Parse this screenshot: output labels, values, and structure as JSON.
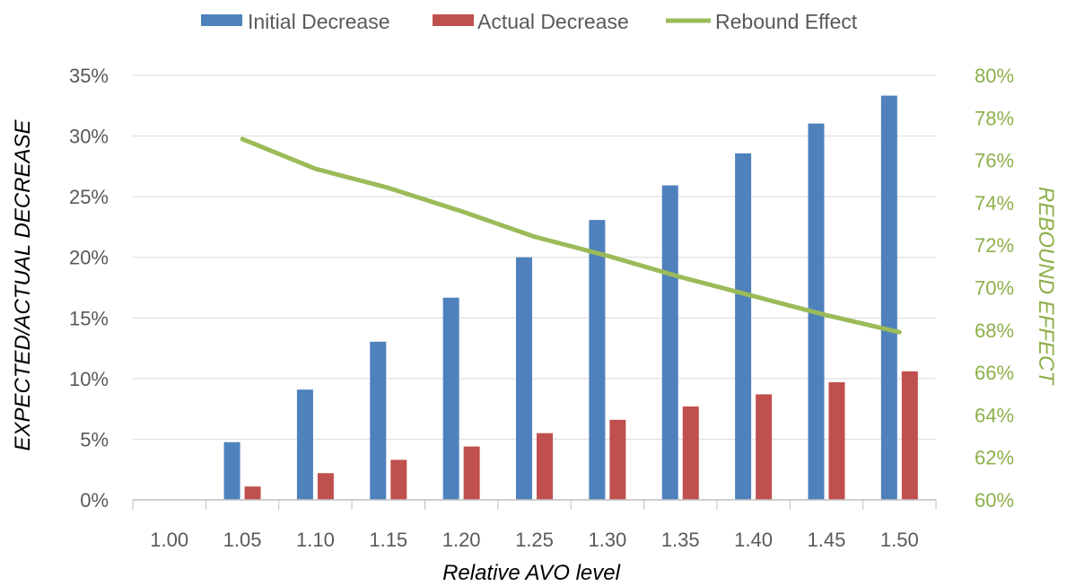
{
  "chart_data": {
    "type": "bar",
    "categories": [
      "1.00",
      "1.05",
      "1.10",
      "1.15",
      "1.20",
      "1.25",
      "1.30",
      "1.35",
      "1.40",
      "1.45",
      "1.50"
    ],
    "series": [
      {
        "name": "Initial Decrease",
        "type": "bar",
        "axis": "left",
        "color": "#4F81BD",
        "values": [
          0.0,
          4.76,
          9.09,
          13.04,
          16.67,
          20.0,
          23.08,
          25.93,
          28.57,
          31.03,
          33.33
        ]
      },
      {
        "name": "Actual Decrease",
        "type": "bar",
        "axis": "left",
        "color": "#C0504D",
        "values": [
          0.0,
          1.1,
          2.2,
          3.3,
          4.4,
          5.5,
          6.6,
          7.7,
          8.7,
          9.7,
          10.6
        ]
      },
      {
        "name": "Rebound Effect",
        "type": "line",
        "axis": "right",
        "color": "#9BBB59",
        "values": [
          null,
          77.0,
          75.6,
          74.7,
          73.6,
          72.4,
          71.5,
          70.5,
          69.6,
          68.7,
          67.9
        ]
      }
    ],
    "xlabel": "Relative AVO level",
    "ylabel": "EXPECTED/ACTUAL DECREASE",
    "y2label": "REBOUND EFFECT",
    "ylim": [
      0,
      35
    ],
    "y2lim": [
      60,
      80
    ],
    "yticks": [
      "0%",
      "5%",
      "10%",
      "15%",
      "20%",
      "25%",
      "30%",
      "35%"
    ],
    "y2ticks": [
      "60%",
      "62%",
      "64%",
      "66%",
      "68%",
      "70%",
      "72%",
      "74%",
      "76%",
      "78%",
      "80%"
    ],
    "grid": "horizontal",
    "legend_position": "top"
  }
}
